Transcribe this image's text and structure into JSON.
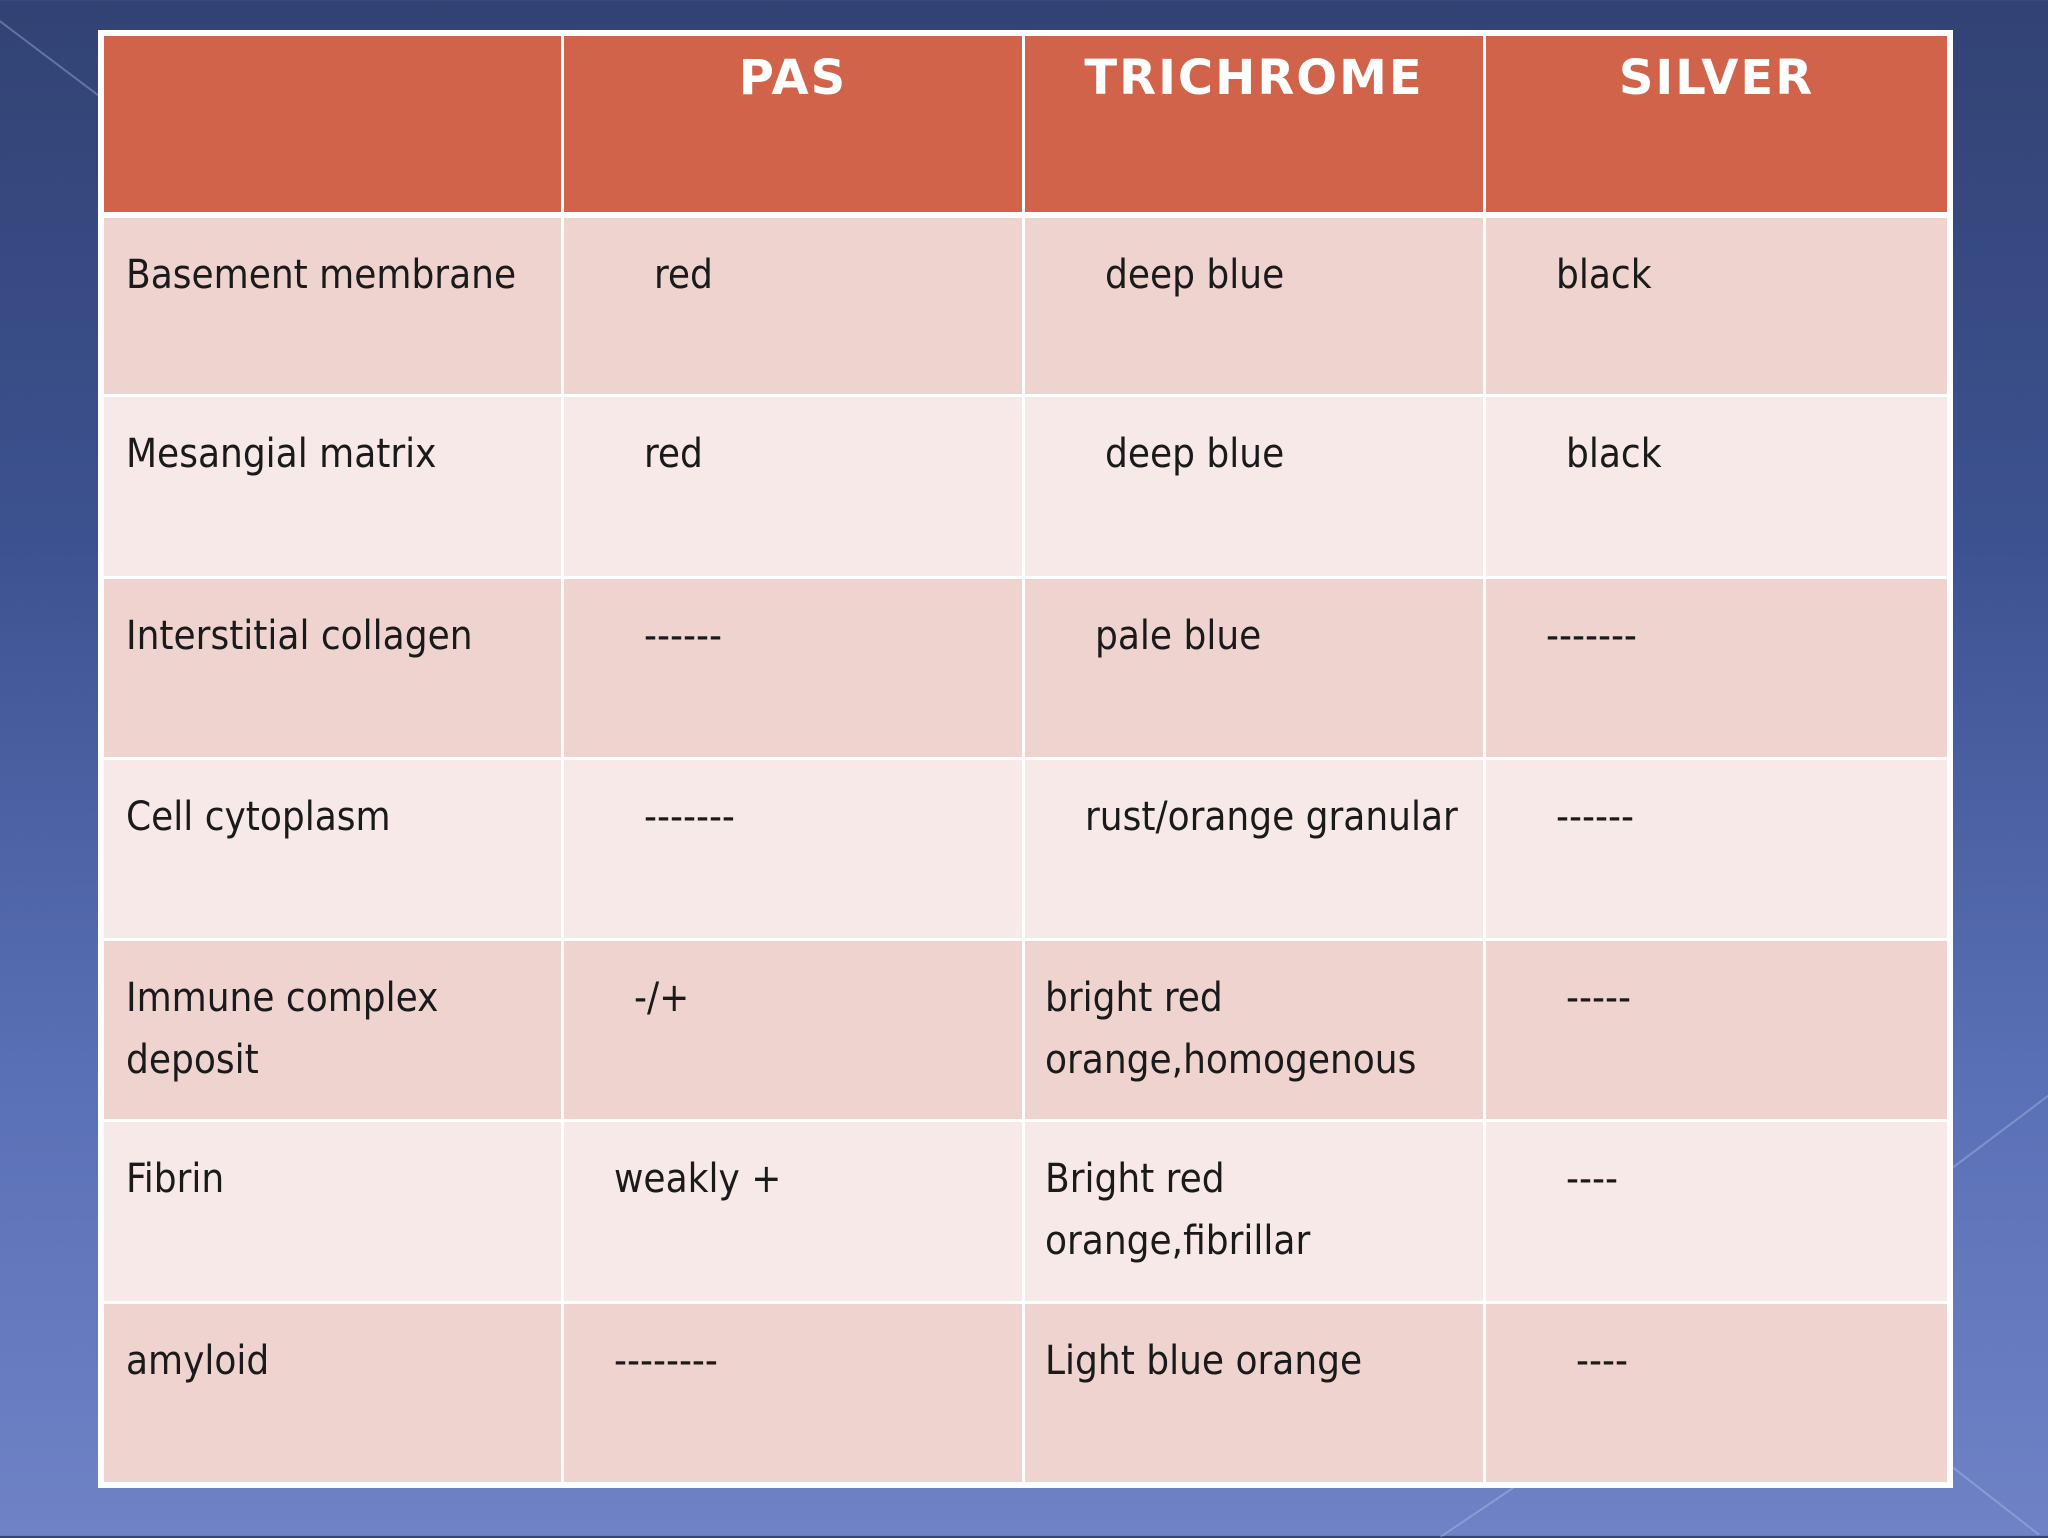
{
  "table": {
    "headers": [
      "",
      "PAS",
      "TRICHROME",
      "SILVER"
    ],
    "rows": [
      {
        "label": "Basement membrane",
        "pas": "red",
        "trichrome": "deep blue",
        "silver": "black"
      },
      {
        "label": "Mesangial matrix",
        "pas": "red",
        "trichrome": "deep blue",
        "silver": "black"
      },
      {
        "label": "Interstitial collagen",
        "pas": "------",
        "trichrome": "pale blue",
        "silver": "-------"
      },
      {
        "label": "Cell cytoplasm",
        "pas": "-------",
        "trichrome": "rust/orange granular",
        "silver": "------"
      },
      {
        "label": "Immune complex deposit",
        "pas": "-/+",
        "trichrome": "bright red\norange,homogenous",
        "silver": "-----"
      },
      {
        "label": "Fibrin",
        "pas": "weakly +",
        "trichrome": "Bright red orange,fibrillar",
        "silver": "----"
      },
      {
        "label": "amyloid",
        "pas": "--------",
        "trichrome": "Light blue orange",
        "silver": "----"
      }
    ]
  },
  "colors": {
    "header_bg": "#d1634a",
    "row_odd_bg": "#efd3cf",
    "row_even_bg": "#f6e9e8",
    "background_top": "#324273",
    "background_bottom": "#6f82c6"
  }
}
